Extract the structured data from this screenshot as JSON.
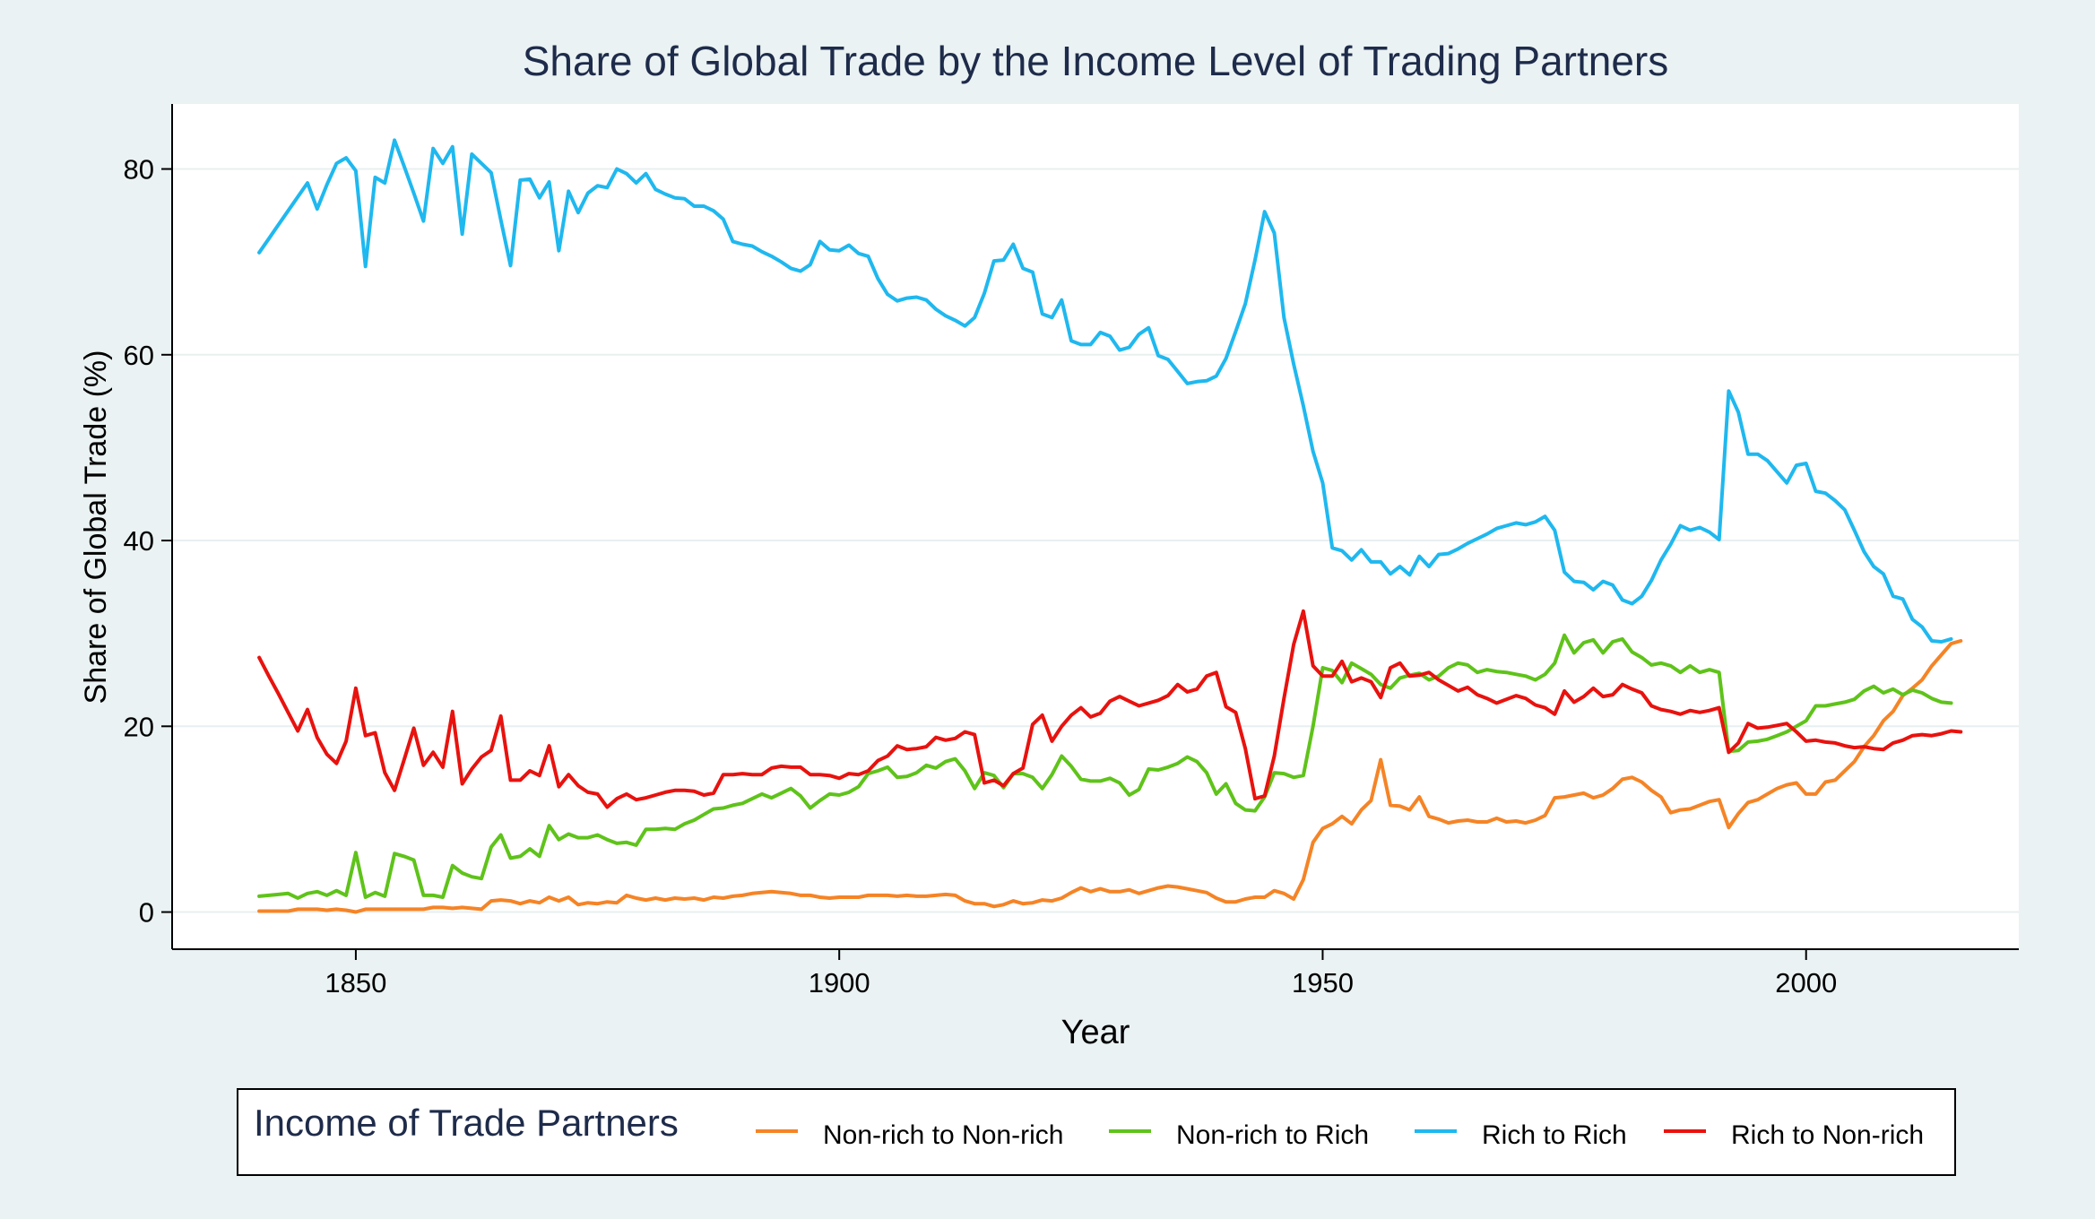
{
  "chart_data": {
    "type": "line",
    "title": "Share of Global Trade by the Income Level of Trading Partners",
    "xlabel": "Year",
    "ylabel": "Share of Global Trade (%)",
    "xlim": [
      1831,
      2022
    ],
    "ylim": [
      -4,
      87
    ],
    "xticks": [
      1850,
      1900,
      1950,
      2000
    ],
    "yticks": [
      0,
      20,
      40,
      60,
      80
    ],
    "grid": true,
    "legend": {
      "title": "Income of Trade Partners",
      "placement": "bottom"
    },
    "x_start": 1840,
    "series": [
      {
        "name": "Non-rich to Non-rich",
        "color": "#f58426",
        "values": [
          0.1,
          0.1,
          0.1,
          0.1,
          0.3,
          0.3,
          0.3,
          0.2,
          0.3,
          0.2,
          0.0,
          0.3,
          0.3,
          0.3,
          0.3,
          0.3,
          0.3,
          0.3,
          0.5,
          0.5,
          0.4,
          0.5,
          0.4,
          0.3,
          1.2,
          1.3,
          1.2,
          0.9,
          1.2,
          1.0,
          1.6,
          1.2,
          1.6,
          0.8,
          1.0,
          0.9,
          1.1,
          1.0,
          1.8,
          1.5,
          1.3,
          1.5,
          1.3,
          1.5,
          1.4,
          1.5,
          1.3,
          1.6,
          1.5,
          1.7,
          1.8,
          2.0,
          2.1,
          2.2,
          2.1,
          2.0,
          1.8,
          1.8,
          1.6,
          1.5,
          1.6,
          1.6,
          1.6,
          1.8,
          1.8,
          1.8,
          1.7,
          1.8,
          1.7,
          1.7,
          1.8,
          1.9,
          1.8,
          1.2,
          0.9,
          0.9,
          0.6,
          0.8,
          1.2,
          0.9,
          1.0,
          1.3,
          1.2,
          1.5,
          2.1,
          2.6,
          2.2,
          2.5,
          2.2,
          2.2,
          2.4,
          2.0,
          2.3,
          2.6,
          2.8,
          2.7,
          2.5,
          2.3,
          2.1,
          1.5,
          1.1,
          1.1,
          1.4,
          1.6,
          1.6,
          2.3,
          2.0,
          1.4,
          3.5,
          7.5,
          9.0,
          9.5,
          10.3,
          9.5,
          11.0,
          12.0,
          16.4,
          11.5,
          11.4,
          11.0,
          12.4,
          10.3,
          10.0,
          9.6,
          9.8,
          9.9,
          9.7,
          9.7,
          10.1,
          9.7,
          9.8,
          9.6,
          9.9,
          10.4,
          12.3,
          12.4,
          12.6,
          12.8,
          12.3,
          12.6,
          13.3,
          14.3,
          14.5,
          14.0,
          13.1,
          12.4,
          10.7,
          11.0,
          11.1,
          11.5,
          11.9,
          12.1,
          9.1,
          10.6,
          11.8,
          12.1,
          12.7,
          13.3,
          13.7,
          13.9,
          12.7,
          12.7,
          14.0,
          14.2,
          15.2,
          16.2,
          17.8,
          19.0,
          20.6,
          21.6,
          23.3,
          24.1,
          25.0,
          26.5,
          27.7,
          28.9,
          29.2
        ]
      },
      {
        "name": "Non-rich to Rich",
        "color": "#5fc31a",
        "values": [
          1.7,
          1.8,
          1.9,
          2.0,
          1.5,
          2.0,
          2.2,
          1.8,
          2.3,
          1.8,
          6.4,
          1.6,
          2.1,
          1.7,
          6.3,
          6.0,
          5.6,
          1.8,
          1.8,
          1.6,
          5.0,
          4.2,
          3.8,
          3.6,
          7.0,
          8.3,
          5.8,
          6.0,
          6.8,
          6.0,
          9.3,
          7.8,
          8.4,
          8.0,
          8.0,
          8.3,
          7.8,
          7.4,
          7.5,
          7.2,
          8.9,
          8.9,
          9.0,
          8.9,
          9.5,
          9.9,
          10.5,
          11.1,
          11.2,
          11.5,
          11.7,
          12.2,
          12.7,
          12.3,
          12.8,
          13.3,
          12.5,
          11.2,
          12.0,
          12.7,
          12.6,
          12.9,
          13.5,
          14.9,
          15.2,
          15.6,
          14.5,
          14.6,
          15.0,
          15.8,
          15.5,
          16.2,
          16.5,
          15.2,
          13.3,
          15.0,
          14.7,
          13.4,
          14.9,
          14.9,
          14.5,
          13.3,
          14.8,
          16.8,
          15.7,
          14.3,
          14.1,
          14.1,
          14.4,
          13.9,
          12.6,
          13.2,
          15.4,
          15.3,
          15.6,
          16.0,
          16.7,
          16.2,
          15.0,
          12.7,
          13.8,
          11.7,
          11.0,
          10.9,
          12.4,
          15.0,
          14.9,
          14.5,
          14.7,
          20.0,
          26.3,
          26.0,
          24.7,
          26.8,
          26.2,
          25.6,
          24.5,
          24.1,
          25.2,
          25.5,
          25.7,
          25.0,
          25.4,
          26.3,
          26.8,
          26.6,
          25.8,
          26.1,
          25.9,
          25.8,
          25.6,
          25.4,
          25.0,
          25.6,
          26.8,
          29.8,
          27.9,
          29.0,
          29.3,
          27.9,
          29.1,
          29.4,
          28.0,
          27.4,
          26.6,
          26.8,
          26.5,
          25.8,
          26.5,
          25.8,
          26.1,
          25.8,
          17.3,
          17.4,
          18.3,
          18.4,
          18.6,
          19.0,
          19.4,
          20.0,
          20.6,
          22.2,
          22.2,
          22.4,
          22.6,
          22.9,
          23.8,
          24.3,
          23.6,
          24.0,
          23.4,
          23.9,
          23.6,
          23.0,
          22.6,
          22.5
        ]
      },
      {
        "name": "Rich to Rich",
        "color": "#1fb8ef",
        "values": [
          71.0,
          72.5,
          74.0,
          75.5,
          77.0,
          78.5,
          75.7,
          78.3,
          80.6,
          81.2,
          79.8,
          69.5,
          79.1,
          78.5,
          83.1,
          80.3,
          77.4,
          74.4,
          82.2,
          80.6,
          82.4,
          73.0,
          81.6,
          80.6,
          79.6,
          74.5,
          69.6,
          78.8,
          78.9,
          76.9,
          78.6,
          71.2,
          77.6,
          75.3,
          77.4,
          78.2,
          78.0,
          80.0,
          79.5,
          78.5,
          79.5,
          77.8,
          77.3,
          76.9,
          76.8,
          76.0,
          76.0,
          75.5,
          74.6,
          72.2,
          71.9,
          71.7,
          71.1,
          70.6,
          70.0,
          69.3,
          69.0,
          69.7,
          72.2,
          71.3,
          71.2,
          71.8,
          70.9,
          70.6,
          68.2,
          66.5,
          65.8,
          66.1,
          66.2,
          65.9,
          64.9,
          64.2,
          63.7,
          63.1,
          64.0,
          66.6,
          70.1,
          70.2,
          71.9,
          69.3,
          68.9,
          64.4,
          64.0,
          65.9,
          61.5,
          61.1,
          61.1,
          62.4,
          62.0,
          60.5,
          60.8,
          62.2,
          62.9,
          59.9,
          59.5,
          58.2,
          56.9,
          57.1,
          57.2,
          57.7,
          59.6,
          62.5,
          65.5,
          70.2,
          75.4,
          73.1,
          64.0,
          59.0,
          54.5,
          49.6,
          46.2,
          39.2,
          38.9,
          37.9,
          39.0,
          37.7,
          37.7,
          36.4,
          37.2,
          36.3,
          38.3,
          37.2,
          38.5,
          38.6,
          39.1,
          39.7,
          40.2,
          40.7,
          41.3,
          41.6,
          41.9,
          41.7,
          42.0,
          42.6,
          41.1,
          36.6,
          35.6,
          35.5,
          34.7,
          35.6,
          35.2,
          33.6,
          33.2,
          34.0,
          35.7,
          37.9,
          39.6,
          41.6,
          41.1,
          41.4,
          40.9,
          40.1,
          56.1,
          53.8,
          49.3,
          49.3,
          48.6,
          47.4,
          46.2,
          48.1,
          48.3,
          45.3,
          45.1,
          44.3,
          43.3,
          41.1,
          38.8,
          37.2,
          36.4,
          34.0,
          33.7,
          31.5,
          30.7,
          29.2,
          29.1,
          29.4
        ]
      },
      {
        "name": "Rich to Non-rich",
        "color": "#e8120e",
        "values": [
          27.4,
          25.4,
          23.5,
          21.5,
          19.5,
          21.8,
          18.8,
          17.0,
          16.0,
          18.4,
          24.1,
          19.0,
          19.3,
          15.0,
          13.1,
          16.4,
          19.8,
          15.8,
          17.2,
          15.6,
          21.6,
          13.8,
          15.4,
          16.7,
          17.4,
          21.1,
          14.2,
          14.2,
          15.2,
          14.7,
          17.9,
          13.5,
          14.8,
          13.6,
          12.9,
          12.7,
          11.3,
          12.2,
          12.7,
          12.1,
          12.3,
          12.6,
          12.9,
          13.1,
          13.1,
          13.0,
          12.6,
          12.8,
          14.8,
          14.8,
          14.9,
          14.8,
          14.8,
          15.5,
          15.7,
          15.6,
          15.6,
          14.8,
          14.8,
          14.7,
          14.4,
          14.9,
          14.8,
          15.2,
          16.3,
          16.8,
          17.9,
          17.5,
          17.6,
          17.8,
          18.8,
          18.5,
          18.7,
          19.4,
          19.1,
          13.9,
          14.2,
          13.6,
          14.9,
          15.5,
          20.2,
          21.2,
          18.4,
          20.0,
          21.2,
          22.0,
          21.0,
          21.4,
          22.7,
          23.2,
          22.7,
          22.2,
          22.5,
          22.8,
          23.3,
          24.5,
          23.7,
          24.0,
          25.4,
          25.8,
          22.1,
          21.5,
          17.6,
          12.2,
          12.5,
          16.8,
          23.0,
          28.8,
          32.4,
          26.5,
          25.4,
          25.4,
          27.0,
          24.8,
          25.2,
          24.8,
          23.1,
          26.3,
          26.8,
          25.4,
          25.5,
          25.8,
          25.0,
          24.4,
          23.8,
          24.2,
          23.4,
          23.0,
          22.5,
          22.9,
          23.3,
          23.0,
          22.3,
          22.0,
          21.3,
          23.8,
          22.6,
          23.2,
          24.1,
          23.2,
          23.4,
          24.5,
          24.0,
          23.6,
          22.2,
          21.8,
          21.6,
          21.3,
          21.7,
          21.5,
          21.7,
          22.0,
          17.2,
          18.2,
          20.3,
          19.8,
          19.9,
          20.1,
          20.3,
          19.4,
          18.4,
          18.5,
          18.3,
          18.2,
          17.9,
          17.7,
          17.8,
          17.6,
          17.5,
          18.2,
          18.5,
          19.0,
          19.1,
          19.0,
          19.2,
          19.5,
          19.4
        ]
      }
    ]
  }
}
